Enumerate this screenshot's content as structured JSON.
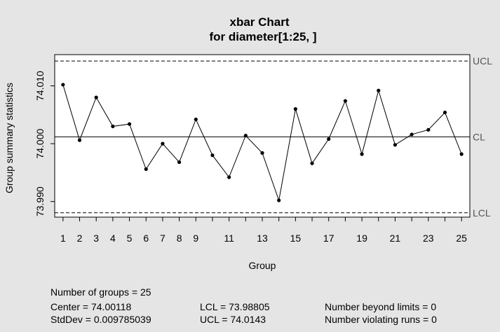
{
  "chart_data": {
    "type": "line",
    "title": "xbar Chart",
    "subtitle": "for diameter[1:25, ]",
    "xlabel": "Group",
    "ylabel": "Group summary statistics",
    "x": [
      1,
      2,
      3,
      4,
      5,
      6,
      7,
      8,
      9,
      10,
      11,
      12,
      13,
      14,
      15,
      16,
      17,
      18,
      19,
      20,
      21,
      22,
      23,
      24,
      25
    ],
    "values": [
      74.0102,
      74.0006,
      74.008,
      74.003,
      74.0034,
      73.9956,
      74.0,
      73.9968,
      74.0042,
      73.998,
      73.9942,
      74.0014,
      73.9984,
      73.9902,
      74.006,
      73.9966,
      74.0008,
      74.0074,
      73.9982,
      74.0092,
      73.9998,
      74.0016,
      74.0024,
      74.0054,
      73.9982
    ],
    "xlim": [
      0.5,
      25.5
    ],
    "ylim": [
      73.9873,
      74.0154
    ],
    "x_ticks": [
      1,
      2,
      3,
      4,
      5,
      6,
      7,
      8,
      9,
      10,
      11,
      12,
      13,
      14,
      15,
      16,
      17,
      18,
      19,
      20,
      21,
      22,
      23,
      24,
      25
    ],
    "x_tick_labels": [
      "1",
      "2",
      "3",
      "4",
      "5",
      "6",
      "7",
      "8",
      "9",
      "",
      "11",
      "",
      "13",
      "",
      "15",
      "",
      "17",
      "",
      "19",
      "",
      "21",
      "",
      "23",
      "",
      "25"
    ],
    "y_ticks": [
      73.99,
      74.0,
      74.01
    ],
    "y_tick_labels": [
      "73.990",
      "74.000",
      "74.010"
    ],
    "limits": {
      "ucl": {
        "label": "UCL",
        "value": 74.0143
      },
      "cl": {
        "label": "CL",
        "value": 74.00118
      },
      "lcl": {
        "label": "LCL",
        "value": 73.98805
      }
    },
    "colors": {
      "background": "#e5e5e5",
      "panel": "#ffffff",
      "line": "#000000",
      "label": "#555555"
    }
  },
  "stats": {
    "groups": "Number of groups = 25",
    "center": "Center = 74.00118",
    "stddev": "StdDev = 0.009785039",
    "lcl": "LCL = 73.98805",
    "ucl": "UCL = 74.0143",
    "beyond": "Number beyond limits = 0",
    "violating": "Number violating runs = 0"
  }
}
